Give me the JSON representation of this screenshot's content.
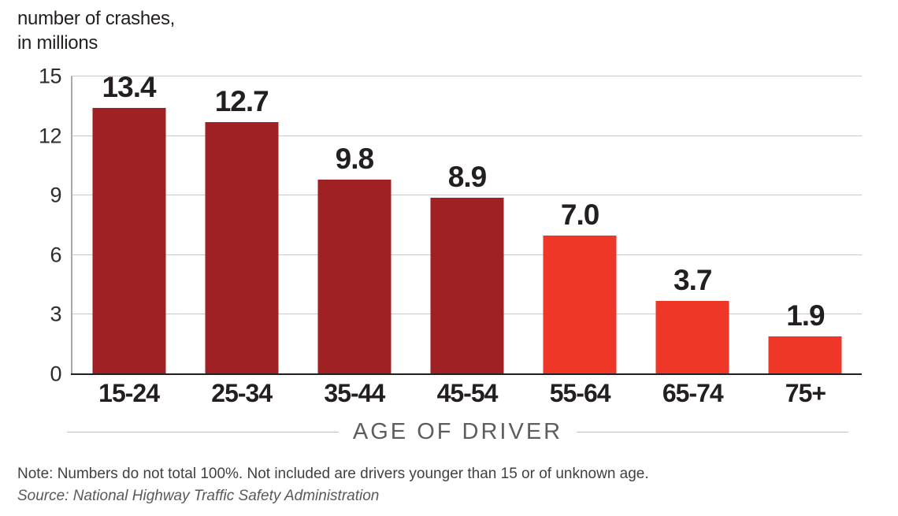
{
  "chart_data": {
    "type": "bar",
    "title_line1": "number of crashes,",
    "title_line2": "in millions",
    "xlabel": "AGE OF DRIVER",
    "ylabel": "number of crashes, in millions",
    "categories": [
      "15-24",
      "25-34",
      "35-44",
      "45-54",
      "55-64",
      "65-74",
      "75+"
    ],
    "values": [
      13.4,
      12.7,
      9.8,
      8.9,
      7.0,
      3.7,
      1.9
    ],
    "value_labels": [
      "13.4",
      "12.7",
      "9.8",
      "8.9",
      "7.0",
      "3.7",
      "1.9"
    ],
    "bar_colors": [
      "#a02124",
      "#a02124",
      "#a02124",
      "#a02124",
      "#ee3726",
      "#ee3726",
      "#ee3726"
    ],
    "ylim": [
      0,
      15
    ],
    "yticks": [
      0,
      3,
      6,
      9,
      12,
      15
    ],
    "grid": "horizontal gridlines at each y tick",
    "legend": "none",
    "colors": {
      "dark_red": "#a02124",
      "bright_red": "#ee3726",
      "gridline": "#c9c9c9",
      "axis_line": "#a7a9ac",
      "baseline": "#231f20",
      "axis_title_gray": "#5c5d60"
    }
  },
  "note": "Note: Numbers do not total 100%. Not included are drivers younger than 15 or of unknown age.",
  "source": "Source: National Highway Traffic Safety Administration"
}
